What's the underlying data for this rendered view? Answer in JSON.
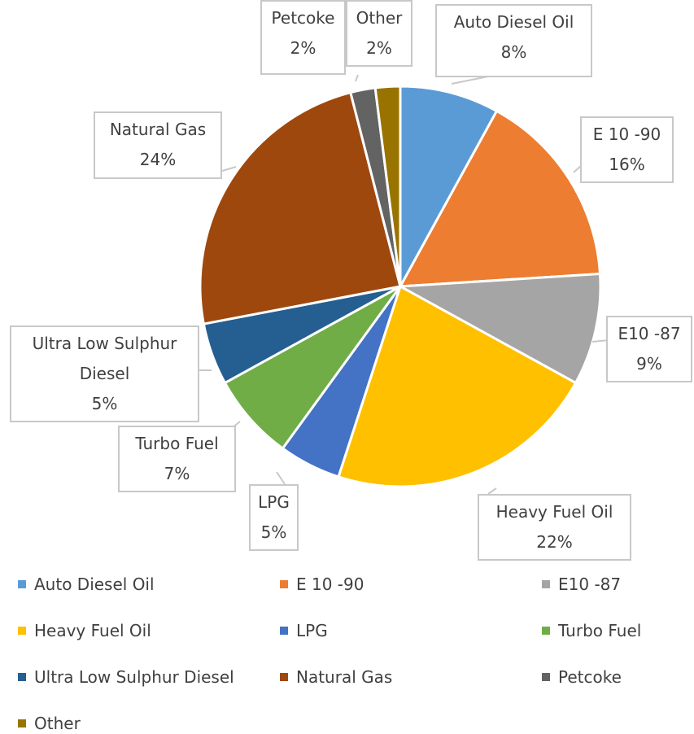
{
  "chart_data": {
    "type": "pie",
    "categories": [
      "Auto Diesel Oil",
      "E 10 -90",
      "E10 -87",
      "Heavy Fuel Oil",
      "LPG",
      "Turbo Fuel",
      "Ultra Low Sulphur Diesel",
      "Natural Gas",
      "Petcoke",
      "Other"
    ],
    "values": [
      8,
      16,
      9,
      22,
      5,
      7,
      5,
      24,
      2,
      2
    ],
    "value_labels": [
      "8%",
      "16%",
      "9%",
      "22%",
      "5%",
      "7%",
      "5%",
      "24%",
      "2%",
      "2%"
    ],
    "colors": [
      "#5b9bd5",
      "#ed7d31",
      "#a5a5a5",
      "#ffc000",
      "#4472c4",
      "#70ad47",
      "#255e91",
      "#9e480e",
      "#636363",
      "#997300"
    ],
    "legend": "bottom"
  }
}
